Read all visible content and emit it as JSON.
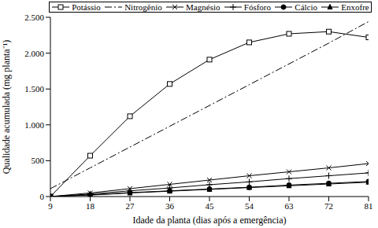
{
  "chart_data": {
    "type": "line",
    "x_label": "Idade da planta (dias após a emergência)",
    "y_label": "Qualidade acumulada (mg planta⁻¹)",
    "x": [
      9,
      18,
      27,
      36,
      45,
      54,
      63,
      72,
      81
    ],
    "xlim": [
      9,
      81
    ],
    "xticks": [
      9,
      18,
      27,
      36,
      45,
      54,
      63,
      72,
      81
    ],
    "ylim": [
      0,
      2500
    ],
    "yticks": [
      0,
      500,
      {
        "value": 1000,
        "label": "1.000"
      },
      {
        "value": 1500,
        "label": "1.500"
      },
      {
        "value": 2000,
        "label": "2.000"
      },
      {
        "value": 2500,
        "label": "2.500"
      }
    ],
    "grid": false,
    "legend": "top",
    "series": [
      {
        "name": "Potássio",
        "color": "#000000",
        "marker": "square",
        "line_style": "solid",
        "values": [
          0,
          570,
          1120,
          1570,
          1910,
          2150,
          2270,
          2300,
          2220
        ]
      },
      {
        "name": "Nitrogênio",
        "color": "#000000",
        "marker": "none",
        "line_style": "dashdot",
        "values": [
          110,
          400,
          690,
          980,
          1270,
          1560,
          1850,
          2140,
          2440
        ]
      },
      {
        "name": "Magnésio",
        "color": "#000000",
        "marker": "x",
        "line_style": "solid",
        "values": [
          0,
          50,
          110,
          170,
          230,
          290,
          345,
          400,
          460
        ]
      },
      {
        "name": "Fósforo",
        "color": "#000000",
        "marker": "plus",
        "line_style": "solid",
        "values": [
          0,
          35,
          80,
          120,
          165,
          205,
          250,
          290,
          330
        ]
      },
      {
        "name": "Cálcio",
        "color": "#000000",
        "marker": "circle",
        "line_style": "solid",
        "values": [
          0,
          25,
          55,
          80,
          105,
          130,
          160,
          185,
          210
        ]
      },
      {
        "name": "Enxofre",
        "color": "#000000",
        "marker": "triangle",
        "line_style": "solid",
        "values": [
          0,
          20,
          50,
          75,
          100,
          125,
          150,
          175,
          200
        ]
      }
    ]
  }
}
